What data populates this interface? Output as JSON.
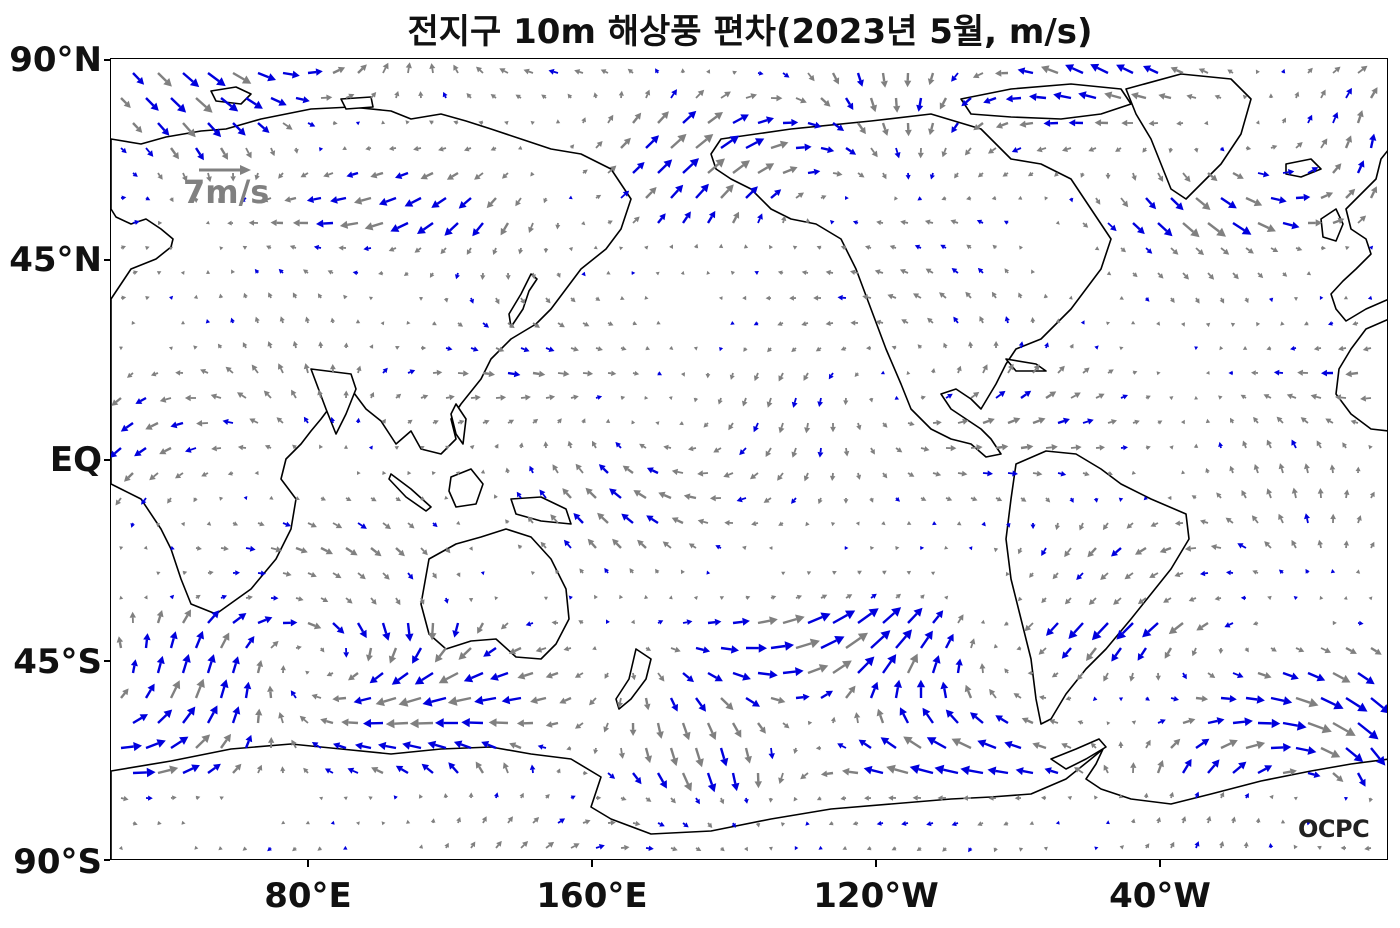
{
  "title": "전지구 10m 해상풍 편차(2023년 5월, m/s)",
  "axes": {
    "lat_ticks": [
      "90°N",
      "45°N",
      "EQ",
      "45°S",
      "90°S"
    ],
    "lon_ticks": [
      "80°E",
      "160°E",
      "120°W",
      "40°W"
    ]
  },
  "reference_vector": {
    "label": "7m/s",
    "speed": 7,
    "color": "#808080"
  },
  "branding": "OCPC",
  "map": {
    "type": "wind_anomaly_vectors",
    "projection": "PlateCarree",
    "lon_range_deg": [
      25,
      385
    ],
    "lat_range_deg": [
      -90,
      90
    ],
    "vector_colors": {
      "significant": "#0000dd",
      "other": "#808080"
    },
    "coastline_color": "#000000"
  }
}
